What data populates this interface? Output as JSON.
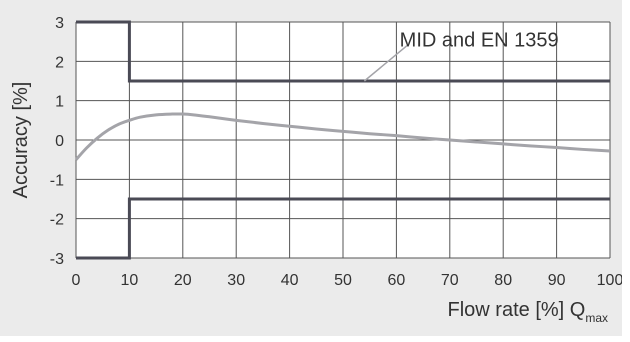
{
  "chart_data": {
    "type": "line",
    "ylabel": "Accuracy [%]",
    "xlabel": {
      "main": "Flow rate [%] Q",
      "subscript": "max"
    },
    "xlim": [
      0,
      100
    ],
    "ylim": [
      -3,
      3
    ],
    "xticks": [
      "0",
      "10",
      "20",
      "30",
      "40",
      "50",
      "60",
      "70",
      "80",
      "90",
      "100"
    ],
    "yticks": [
      "3",
      "2",
      "1",
      "0",
      "-1",
      "-2",
      "-3"
    ],
    "grid": true,
    "annotation": "MID and EN 1359",
    "limit_upper": {
      "x": [
        0,
        10,
        10,
        100
      ],
      "y": [
        3,
        3,
        1.5,
        1.5
      ]
    },
    "limit_lower": {
      "x": [
        0,
        10,
        10,
        100
      ],
      "y": [
        -3,
        -3,
        -1.5,
        -1.5
      ]
    },
    "curve": {
      "x": [
        0,
        2,
        4,
        6,
        8,
        10,
        12,
        15,
        18,
        20,
        22,
        25,
        30,
        35,
        40,
        45,
        50,
        55,
        60,
        65,
        70,
        75,
        80,
        85,
        90,
        95,
        100
      ],
      "y": [
        -0.5,
        -0.2,
        0.05,
        0.25,
        0.4,
        0.5,
        0.58,
        0.64,
        0.66,
        0.66,
        0.64,
        0.59,
        0.5,
        0.42,
        0.35,
        0.28,
        0.22,
        0.16,
        0.11,
        0.05,
        0.0,
        -0.05,
        -0.1,
        -0.15,
        -0.19,
        -0.24,
        -0.28
      ]
    },
    "colors": {
      "limit": "#4a4a55",
      "curve": "#a4a4a9",
      "grid": "#555555",
      "background": "#ebebeb",
      "plot_background": "#ffffff"
    }
  }
}
